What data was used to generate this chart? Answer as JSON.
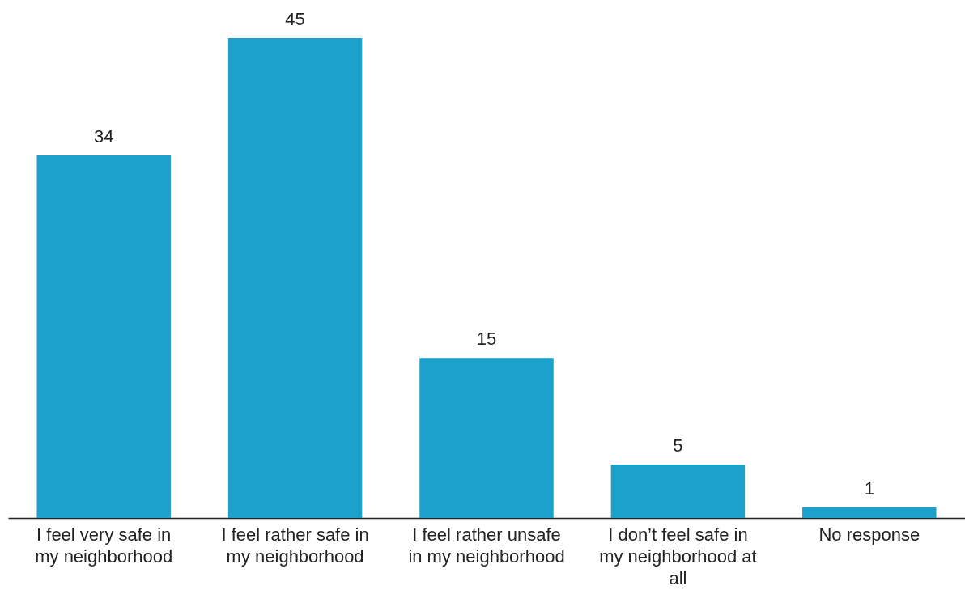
{
  "chart_data": {
    "type": "bar",
    "categories": [
      "I feel very safe in my neighborhood",
      "I feel rather safe in my neighborhood",
      "I feel rather unsafe in my neighborhood",
      "I don’t feel safe in my neighborhood at all",
      "No response"
    ],
    "values": [
      34,
      45,
      15,
      5,
      1
    ],
    "color": "#1ba1cc",
    "data_labels": true,
    "tick_labels": "x"
  }
}
